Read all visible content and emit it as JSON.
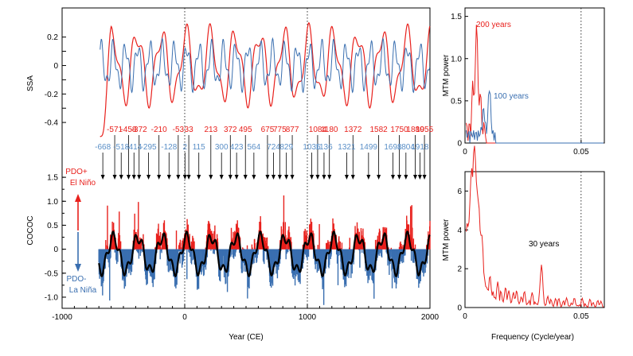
{
  "colors": {
    "red": "#e8201c",
    "blue": "#3a6fb0",
    "blue_light": "#5a8fc7",
    "black": "#000000"
  },
  "chart_data": [
    {
      "id": "ssa",
      "type": "line",
      "ylabel": "SSA",
      "xlim": [
        -1000,
        2000
      ],
      "ylim": [
        -0.5,
        0.36
      ],
      "yticks": [
        0.2,
        0.1,
        0,
        -0.1,
        -0.2,
        -0.3,
        -0.4
      ],
      "ytick_labels": [
        "0.2",
        "",
        "0",
        "",
        "-0.2",
        "",
        "-0.4"
      ],
      "series": [
        {
          "name": "SSA red (long period)",
          "color": "#e8201c"
        },
        {
          "name": "SSA blue (short period)",
          "color": "#3a6fb0"
        }
      ],
      "events_red": [
        {
          "year": -571,
          "label": "-571"
        },
        {
          "year": -372,
          "label": "-372"
        },
        {
          "year": -458,
          "label": "-458"
        },
        {
          "year": -210,
          "label": "-210"
        },
        {
          "year": -53,
          "label": "-53"
        },
        {
          "year": 33,
          "label": "33"
        },
        {
          "year": 213,
          "label": "213"
        },
        {
          "year": 372,
          "label": "372"
        },
        {
          "year": 495,
          "label": "495"
        },
        {
          "year": 775,
          "label": "775"
        },
        {
          "year": 675,
          "label": "675"
        },
        {
          "year": 877,
          "label": "877"
        },
        {
          "year": 1084,
          "label": "1084"
        },
        {
          "year": 1180,
          "label": "1180"
        },
        {
          "year": 1372,
          "label": "1372"
        },
        {
          "year": 1582,
          "label": "1582"
        },
        {
          "year": 1750,
          "label": "1750"
        },
        {
          "year": 1880,
          "label": "1880"
        },
        {
          "year": 1955,
          "label": "1955"
        }
      ],
      "events_blue": [
        {
          "year": -668,
          "label": "-668"
        },
        {
          "year": -518,
          "label": "-518"
        },
        {
          "year": -414,
          "label": "-414"
        },
        {
          "year": -295,
          "label": "-295"
        },
        {
          "year": -128,
          "label": "-128"
        },
        {
          "year": 2,
          "label": "2"
        },
        {
          "year": 115,
          "label": "115"
        },
        {
          "year": 300,
          "label": "300"
        },
        {
          "year": 423,
          "label": "423"
        },
        {
          "year": 564,
          "label": "564"
        },
        {
          "year": 724,
          "label": "724"
        },
        {
          "year": 829,
          "label": "829"
        },
        {
          "year": 1036,
          "label": "1036"
        },
        {
          "year": 1136,
          "label": "1136"
        },
        {
          "year": 1321,
          "label": "1321"
        },
        {
          "year": 1499,
          "label": "1499"
        },
        {
          "year": 1698,
          "label": "1698"
        },
        {
          "year": 1804,
          "label": "1804"
        },
        {
          "year": 1918,
          "label": "1918"
        }
      ]
    },
    {
      "id": "cococ",
      "type": "area",
      "ylabel": "COCOC",
      "xlabel": "Year (CE)",
      "xlim": [
        -1000,
        2000
      ],
      "ylim": [
        -1.1,
        1.8
      ],
      "xticks": [
        -1000,
        0,
        1000,
        2000
      ],
      "xtick_labels": [
        "-1000",
        "0",
        "1000",
        "2000"
      ],
      "yticks": [
        1.5,
        1.0,
        0.5,
        0,
        -0.5,
        -1.0
      ],
      "ytick_labels": [
        "1.5",
        "1.0",
        "0.5",
        "0",
        "-0.5",
        "-1.0"
      ],
      "annotations": {
        "pdo_plus": "PDO+",
        "el_nino": "El Niño",
        "pdo_minus": "PDO-",
        "la_nina": "La Niña"
      },
      "series": [
        {
          "name": "positive anomaly",
          "color": "#e8201c"
        },
        {
          "name": "negative anomaly",
          "color": "#3a6fb0"
        },
        {
          "name": "smoothed",
          "color": "#000000"
        }
      ]
    },
    {
      "id": "mtm_ssa",
      "type": "line",
      "ylabel": "MTM power",
      "xlim": [
        0,
        0.06
      ],
      "ylim": [
        0,
        1.6
      ],
      "xticks": [
        0,
        0.05
      ],
      "xtick_labels": [
        "0",
        "0.05"
      ],
      "yticks": [
        0,
        0.5,
        1.0,
        1.5
      ],
      "ytick_labels": [
        "0",
        "0.5",
        "1.0",
        "1.5"
      ],
      "labels": {
        "peak_red": "200 years",
        "peak_blue": "100 years"
      },
      "series": [
        {
          "name": "MTM red",
          "color": "#e8201c"
        },
        {
          "name": "MTM blue",
          "color": "#3a6fb0"
        }
      ]
    },
    {
      "id": "mtm_cococ",
      "type": "line",
      "ylabel": "MTM power",
      "xlabel": "Frequency (Cycle/year)",
      "xlim": [
        0,
        0.06
      ],
      "ylim": [
        0,
        7
      ],
      "xticks": [
        0,
        0.05
      ],
      "xtick_labels": [
        "0",
        "0.05"
      ],
      "yticks": [
        0,
        2,
        4,
        6
      ],
      "ytick_labels": [
        "0",
        "2",
        "4",
        "6"
      ],
      "labels": {
        "peak": "30 years"
      },
      "series": [
        {
          "name": "MTM COCOC",
          "color": "#e8201c"
        }
      ]
    }
  ]
}
